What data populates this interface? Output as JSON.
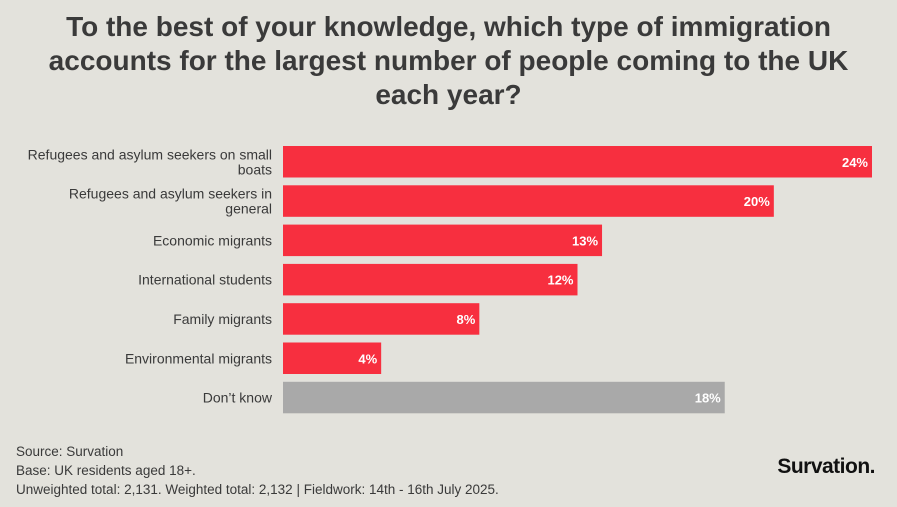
{
  "chart_data": {
    "type": "bar",
    "orientation": "horizontal",
    "title": "To the best of your knowledge, which type of immigration accounts for the largest number of people coming to the UK each year?",
    "categories": [
      [
        "Refugees and asylum seekers on small",
        "boats"
      ],
      [
        "Refugees and asylum seekers in",
        "general"
      ],
      [
        "Economic migrants"
      ],
      [
        "International students"
      ],
      [
        "Family migrants"
      ],
      [
        "Environmental migrants"
      ],
      [
        "Don’t know"
      ]
    ],
    "values": [
      24,
      20,
      13,
      12,
      8,
      4,
      18
    ],
    "value_labels": [
      "24%",
      "20%",
      "13%",
      "12%",
      "8%",
      "4%",
      "18%"
    ],
    "bar_colors": [
      "#f72f3f",
      "#f72f3f",
      "#f72f3f",
      "#f72f3f",
      "#f72f3f",
      "#f72f3f",
      "#a9a9a9"
    ],
    "unit": "%",
    "xlim": [
      0,
      24
    ]
  },
  "footer": {
    "source": "Source: Survation",
    "base": "Base: UK residents aged 18+.",
    "totals": "Unweighted total: 2,131. Weighted total: 2,132 | Fieldwork: 14th - 16th July 2025."
  },
  "brand": {
    "name": "Survation."
  }
}
